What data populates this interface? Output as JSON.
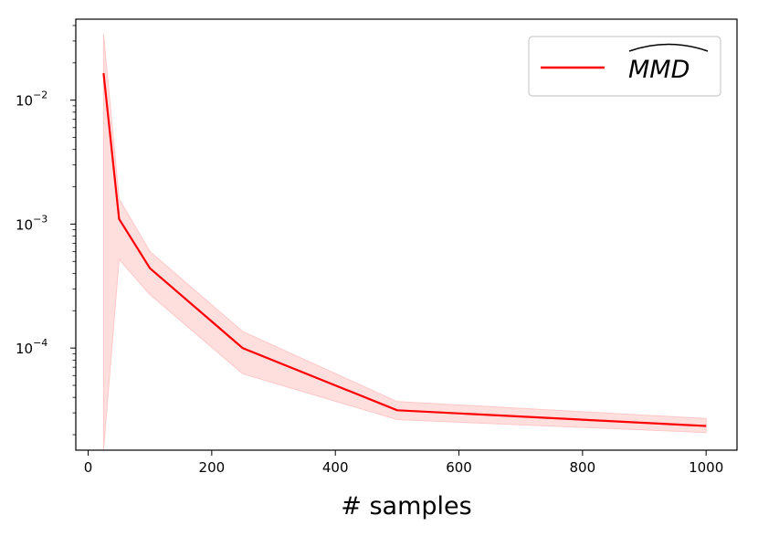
{
  "chart_data": {
    "type": "line",
    "title": "",
    "xlabel": "# samples",
    "ylabel": "",
    "xlim": [
      -20,
      1050
    ],
    "ylim": [
      1.5e-05,
      0.045
    ],
    "yscale": "log",
    "grid": false,
    "legend_position": "top-right",
    "x_ticks": [
      0,
      200,
      400,
      600,
      800,
      1000
    ],
    "x_tick_labels": [
      "0",
      "200",
      "400",
      "600",
      "800",
      "1000"
    ],
    "y_ticks": [
      0.0001,
      0.001,
      0.01
    ],
    "y_tick_bases": [
      "10",
      "10",
      "10"
    ],
    "y_tick_exponents": [
      "−4",
      "−3",
      "−2"
    ],
    "series": [
      {
        "name": "MMD",
        "name_hat": true,
        "color": "#ff0000",
        "band_color": "#ffc8c8",
        "x": [
          25,
          50,
          100,
          250,
          500,
          1000
        ],
        "y": [
          0.0165,
          0.0011,
          0.00044,
          0.0001,
          3.15e-05,
          2.35e-05
        ],
        "y_upper": [
          0.034,
          0.0016,
          0.0006,
          0.000136,
          3.7e-05,
          2.7e-05
        ],
        "y_lower": [
          1e-06,
          0.00052,
          0.00027,
          6.2e-05,
          2.65e-05,
          2.08e-05
        ]
      }
    ]
  }
}
